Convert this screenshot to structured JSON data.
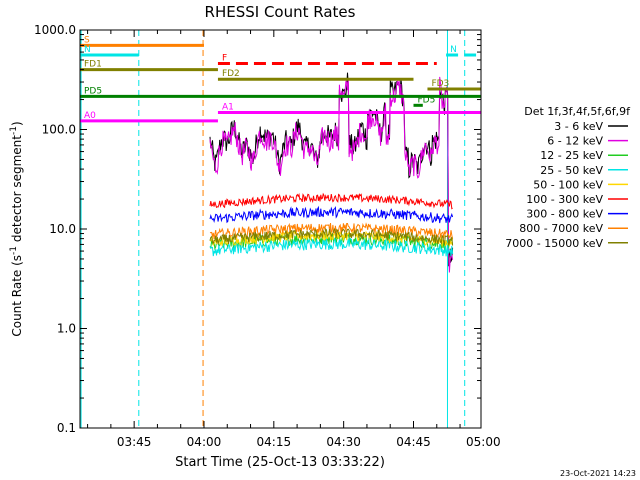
{
  "chart_data": {
    "type": "line",
    "title": "RHESSI Count Rates",
    "xlabel": "Start Time (25-Oct-13 03:33:22)",
    "ylabel_main": "Count Rate (s",
    "ylabel_exp": "-1",
    "ylabel_tail": " detector segment",
    "ylabel_exp2": "-1",
    "ylabel_close": ")",
    "y_scale": "log",
    "ylim": [
      0.1,
      1000
    ],
    "xlim_minutes": [
      213.37,
      299.5
    ],
    "x_ticks": [
      {
        "label": "03:45",
        "minutes": 225
      },
      {
        "label": "04:00",
        "minutes": 240
      },
      {
        "label": "04:15",
        "minutes": 255
      },
      {
        "label": "04:30",
        "minutes": 270
      },
      {
        "label": "04:45",
        "minutes": 285
      },
      {
        "label": "05:00",
        "minutes": 300
      }
    ],
    "y_ticks": [
      {
        "label": "1000.0",
        "value": 1000
      },
      {
        "label": "100.0",
        "value": 100
      },
      {
        "label": "10.0",
        "value": 10
      },
      {
        "label": "1.0",
        "value": 1
      },
      {
        "label": "0.1",
        "value": 0.1
      }
    ],
    "data_start_minutes": 241.3,
    "data_end_minutes": 293.4,
    "legend_title": "Det 1f,3f,4f,5f,6f,9f",
    "series": [
      {
        "name": "3 - 6 keV",
        "color": "#000000",
        "level": 75,
        "noise": 0.12
      },
      {
        "name": "6 - 12 keV",
        "color": "#e000e0",
        "level": 70,
        "noise": 0.12
      },
      {
        "name": "12 - 25 keV",
        "color": "#22cc22",
        "level": 6.8,
        "noise": 0.06
      },
      {
        "name": "25 - 50 keV",
        "color": "#00e5e5",
        "level": 6.0,
        "noise": 0.06
      },
      {
        "name": "50 - 100 keV",
        "color": "#ffd700",
        "level": 7.3,
        "noise": 0.05
      },
      {
        "name": "100 - 300 keV",
        "color": "#ff0000",
        "level": 17.5,
        "noise": 0.04
      },
      {
        "name": "300 - 800 keV",
        "color": "#0000ff",
        "level": 12.5,
        "noise": 0.05
      },
      {
        "name": "800 - 7000 keV",
        "color": "#ff8000",
        "level": 8.7,
        "noise": 0.05
      },
      {
        "name": "7000 - 15000 keV",
        "color": "#808000",
        "level": 7.6,
        "noise": 0.05
      }
    ],
    "flags": [
      {
        "label": "S",
        "color": "#ff8000",
        "start": 213.37,
        "end": 240.0,
        "value": 700,
        "dash": false
      },
      {
        "label": "N",
        "color": "#00e5e5",
        "start": 213.37,
        "end": 226.0,
        "value": 560,
        "dash": false
      },
      {
        "label": "N",
        "color": "#00e5e5",
        "start": 292.0,
        "end": 299.5,
        "value": 560,
        "dash": true
      },
      {
        "label": "F",
        "color": "#ff0000",
        "start": 243.0,
        "end": 290.0,
        "value": 460,
        "dash": true
      },
      {
        "label": "FD1",
        "color": "#808000",
        "start": 213.37,
        "end": 243.0,
        "value": 400,
        "dash": false
      },
      {
        "label": "FD2",
        "color": "#808000",
        "start": 243.0,
        "end": 285.0,
        "value": 320,
        "dash": false
      },
      {
        "label": "FD3",
        "color": "#808000",
        "start": 288.0,
        "end": 299.5,
        "value": 255,
        "dash": false
      },
      {
        "label": "PD5",
        "color": "#008000",
        "start": 213.37,
        "end": 299.5,
        "value": 215,
        "dash": false
      },
      {
        "label": "FD5",
        "color": "#008000",
        "start": 285.0,
        "end": 287.0,
        "value": 175,
        "dash": false
      },
      {
        "label": "A0",
        "color": "#ff00ff",
        "start": 213.37,
        "end": 243.0,
        "value": 122,
        "dash": false
      },
      {
        "label": "A1",
        "color": "#ff00ff",
        "start": 243.0,
        "end": 299.5,
        "value": 148,
        "dash": false
      }
    ],
    "vlines": [
      {
        "minutes": 213.6,
        "color": "#00e5e5",
        "dash": false
      },
      {
        "minutes": 226.0,
        "color": "#00e5e5",
        "dash": true
      },
      {
        "minutes": 239.8,
        "color": "#ff8000",
        "dash": true
      },
      {
        "minutes": 292.3,
        "color": "#00e5e5",
        "dash": false
      },
      {
        "minutes": 296.0,
        "color": "#00e5e5",
        "dash": true
      }
    ]
  },
  "footer_date": "23-Oct-2021 14:23"
}
